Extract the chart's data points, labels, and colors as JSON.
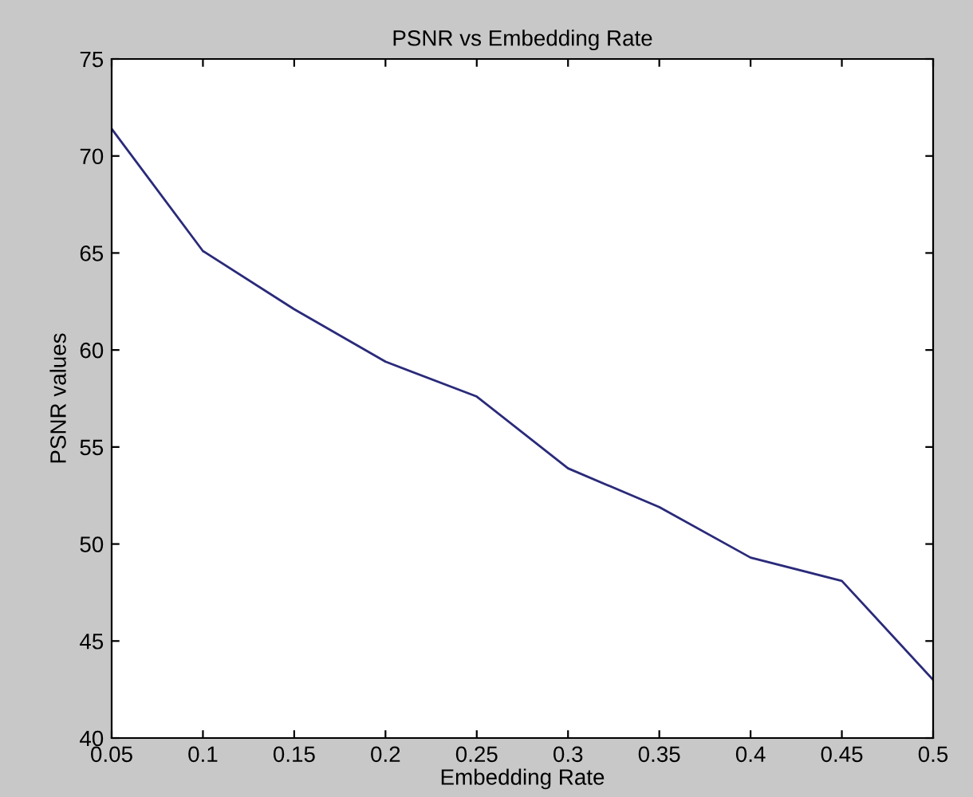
{
  "chart_data": {
    "type": "line",
    "title": "PSNR vs Embedding Rate",
    "xlabel": "Embedding Rate",
    "ylabel": "PSNR values",
    "x": [
      0.05,
      0.1,
      0.15,
      0.2,
      0.25,
      0.3,
      0.35,
      0.4,
      0.45,
      0.5
    ],
    "series": [
      {
        "color": "#2a2a7a",
        "values": [
          71.4,
          65.1,
          62.1,
          59.4,
          57.6,
          53.9,
          51.9,
          49.3,
          48.1,
          43.0
        ]
      }
    ],
    "xlim": [
      0.05,
      0.5
    ],
    "xticks": [
      0.05,
      0.1,
      0.15,
      0.2,
      0.25,
      0.3,
      0.35,
      0.4,
      0.45,
      0.5
    ],
    "ylim": [
      40,
      75
    ],
    "yticks": [
      40,
      45,
      50,
      55,
      60,
      65,
      70,
      75
    ],
    "grid": false,
    "legend": false
  }
}
